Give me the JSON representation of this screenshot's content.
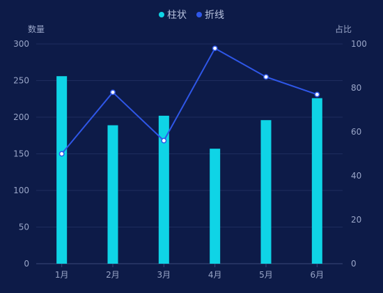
{
  "chart_data": {
    "type": "bar",
    "categories": [
      "1月",
      "2月",
      "3月",
      "4月",
      "5月",
      "6月"
    ],
    "series": [
      {
        "name": "柱状",
        "type": "bar",
        "axis": "left",
        "color": "#0fd4e6",
        "values": [
          256,
          189,
          202,
          157,
          196,
          226
        ]
      },
      {
        "name": "折线",
        "type": "line",
        "axis": "right",
        "color": "#2f57e8",
        "values": [
          50,
          78,
          56,
          98,
          85,
          77
        ]
      }
    ],
    "y_left": {
      "label": "数量",
      "ylim": [
        0,
        300
      ],
      "ticks": [
        "0",
        "50",
        "100",
        "150",
        "200",
        "250",
        "300"
      ]
    },
    "y_right": {
      "label": "占比",
      "ylim": [
        0,
        100
      ],
      "ticks": [
        "0",
        "20",
        "40",
        "60",
        "80",
        "100"
      ]
    },
    "legend_position": "top-center",
    "grid": true,
    "colors": {
      "background": "#0d1b48",
      "text": "#9aa6c8",
      "grid": "#1e2d5e",
      "axis": "#3a4a7a",
      "legend_text": "#b9c3de"
    }
  }
}
